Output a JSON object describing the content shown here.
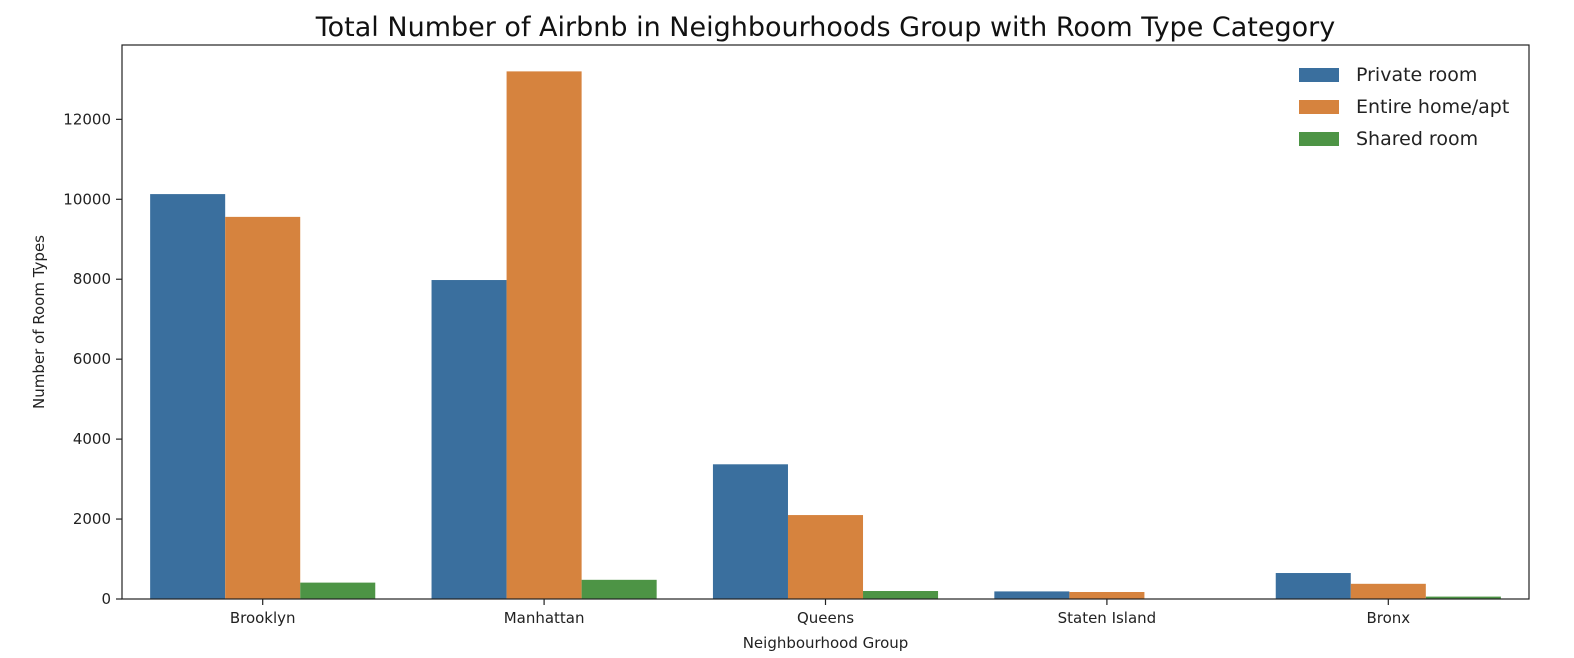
{
  "chart_data": {
    "type": "bar",
    "title": "Total Number of Airbnb in Neighbourhoods Group with Room Type Category",
    "xlabel": "Neighbourhood Group",
    "ylabel": "Number of Room Types",
    "categories": [
      "Brooklyn",
      "Manhattan",
      "Queens",
      "Staten Island",
      "Bronx"
    ],
    "series": [
      {
        "name": "Private room",
        "color": "#3a6f9e",
        "values": [
          10130,
          7980,
          3370,
          190,
          650
        ]
      },
      {
        "name": "Entire home/apt",
        "color": "#d6833e",
        "values": [
          9560,
          13200,
          2100,
          175,
          380
        ]
      },
      {
        "name": "Shared room",
        "color": "#4d9445",
        "values": [
          410,
          480,
          200,
          10,
          60
        ]
      }
    ],
    "yticks": [
      0,
      2000,
      4000,
      6000,
      8000,
      10000,
      12000
    ],
    "ylim": [
      0,
      13860
    ],
    "grid": false,
    "legend_position": "top-right"
  }
}
